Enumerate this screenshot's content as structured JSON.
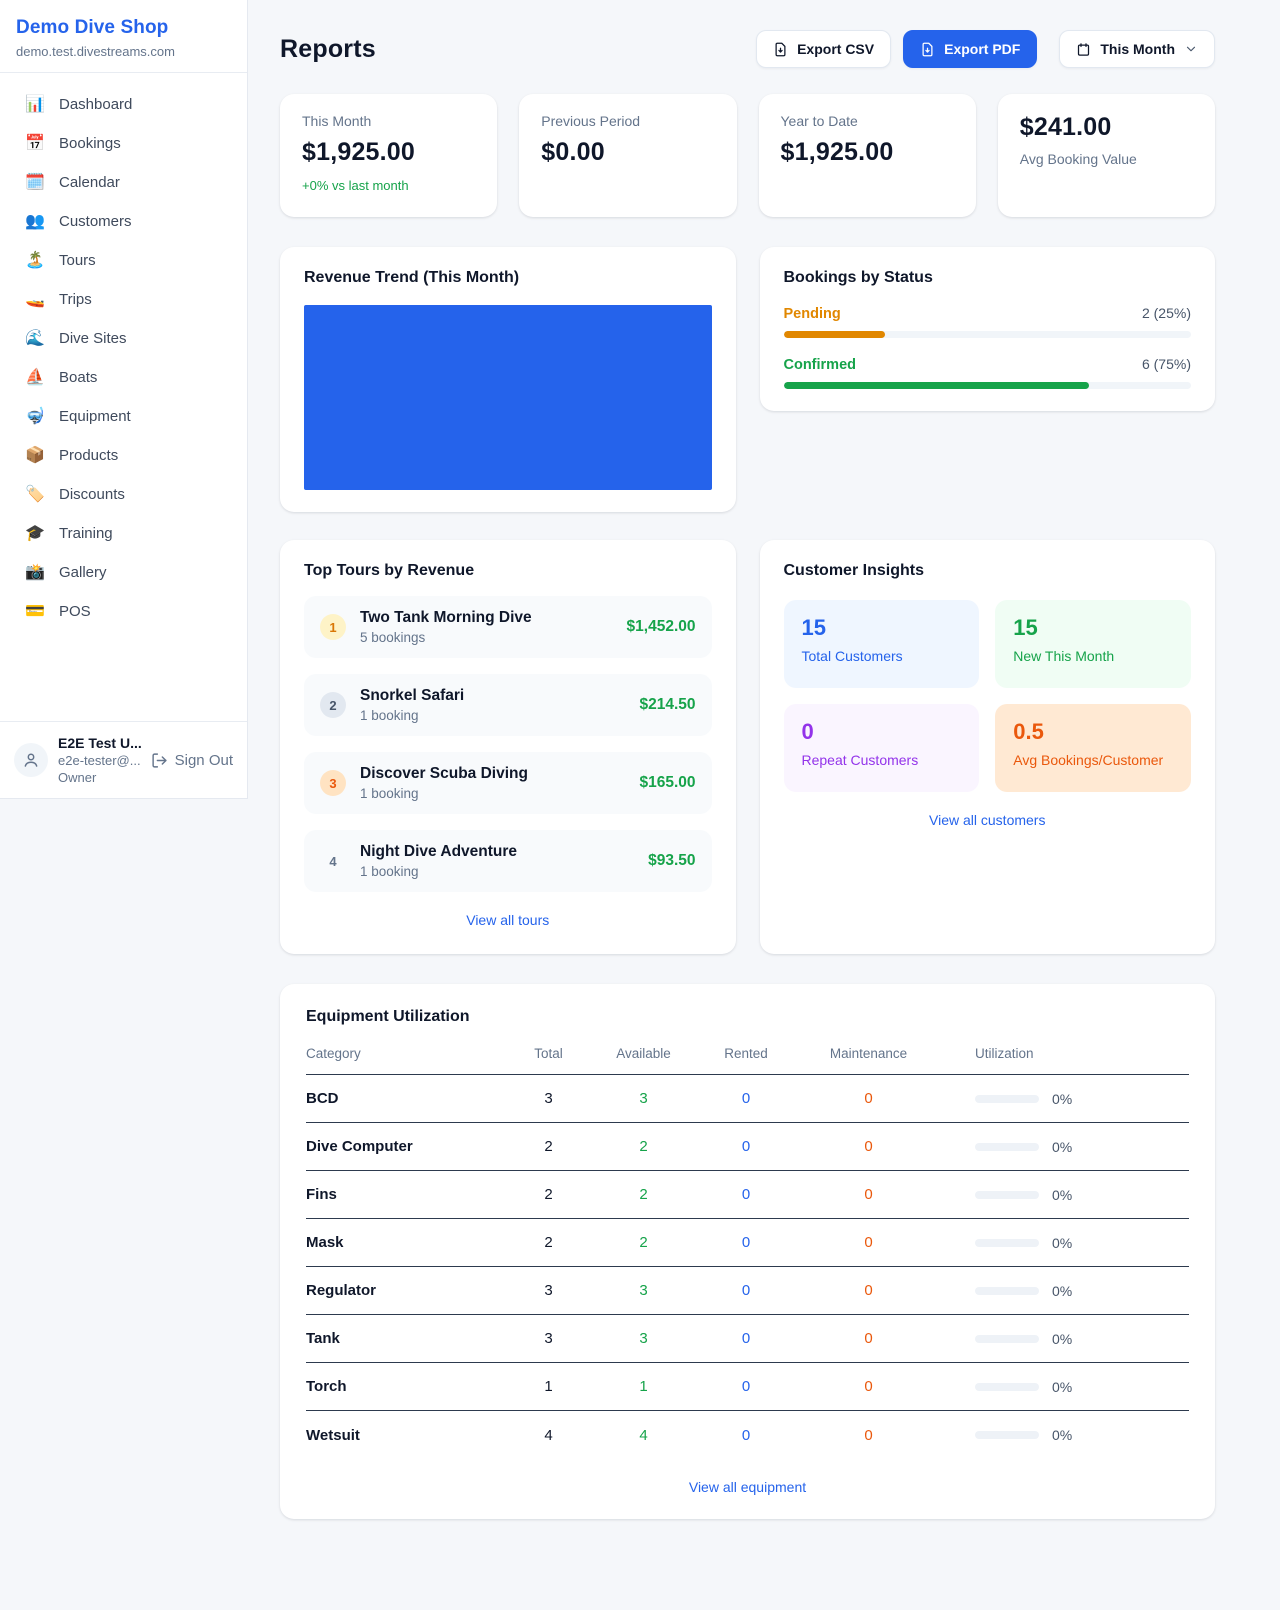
{
  "sidebar": {
    "brand": {
      "name": "Demo Dive Shop",
      "domain": "demo.test.divestreams.com"
    },
    "nav": [
      {
        "label": "Dashboard",
        "icon": "📊"
      },
      {
        "label": "Bookings",
        "icon": "📅"
      },
      {
        "label": "Calendar",
        "icon": "🗓️"
      },
      {
        "label": "Customers",
        "icon": "👥"
      },
      {
        "label": "Tours",
        "icon": "🏝️"
      },
      {
        "label": "Trips",
        "icon": "🚤"
      },
      {
        "label": "Dive Sites",
        "icon": "🌊"
      },
      {
        "label": "Boats",
        "icon": "⛵"
      },
      {
        "label": "Equipment",
        "icon": "🤿"
      },
      {
        "label": "Products",
        "icon": "📦"
      },
      {
        "label": "Discounts",
        "icon": "🏷️"
      },
      {
        "label": "Training",
        "icon": "🎓"
      },
      {
        "label": "Gallery",
        "icon": "📸"
      },
      {
        "label": "POS",
        "icon": "💳"
      }
    ],
    "user": {
      "name": "E2E Test U...",
      "email": "e2e-tester@...",
      "role": "Owner",
      "sign_out_label": "Sign Out"
    }
  },
  "header": {
    "title": "Reports",
    "export_csv_label": "Export CSV",
    "export_pdf_label": "Export PDF",
    "period_label": "This Month"
  },
  "summary_cards": {
    "this_month": {
      "label": "This Month",
      "value": "$1,925.00",
      "delta": "+0% vs last month"
    },
    "previous_period": {
      "label": "Previous Period",
      "value": "$0.00"
    },
    "year_to_date": {
      "label": "Year to Date",
      "value": "$1,925.00"
    },
    "avg_booking": {
      "value": "$241.00",
      "label": "Avg Booking Value"
    }
  },
  "revenue_trend": {
    "title": "Revenue Trend (This Month)"
  },
  "bookings_by_status": {
    "title": "Bookings by Status",
    "statuses": [
      {
        "label": "Pending",
        "value_text": "2 (25%)",
        "count": 2,
        "percent": 25,
        "color": "#e18700"
      },
      {
        "label": "Confirmed",
        "value_text": "6 (75%)",
        "count": 6,
        "percent": 75,
        "color": "#16a34a"
      }
    ]
  },
  "top_tours": {
    "title": "Top Tours by Revenue",
    "items": [
      {
        "rank": "1",
        "name": "Two Tank Morning Dive",
        "bookings": "5 bookings",
        "revenue": "$1,452.00"
      },
      {
        "rank": "2",
        "name": "Snorkel Safari",
        "bookings": "1 booking",
        "revenue": "$214.50"
      },
      {
        "rank": "3",
        "name": "Discover Scuba Diving",
        "bookings": "1 booking",
        "revenue": "$165.00"
      },
      {
        "rank": "4",
        "name": "Night Dive Adventure",
        "bookings": "1 booking",
        "revenue": "$93.50"
      }
    ],
    "view_all_label": "View all tours"
  },
  "customer_insights": {
    "title": "Customer Insights",
    "tiles": [
      {
        "value": "15",
        "label": "Total Customers",
        "theme": "blue"
      },
      {
        "value": "15",
        "label": "New This Month",
        "theme": "green"
      },
      {
        "value": "0",
        "label": "Repeat Customers",
        "theme": "purple"
      },
      {
        "value": "0.5",
        "label": "Avg Bookings/Customer",
        "theme": "orange"
      }
    ],
    "view_all_label": "View all customers"
  },
  "equipment_utilization": {
    "title": "Equipment Utilization",
    "columns": [
      "Category",
      "Total",
      "Available",
      "Rented",
      "Maintenance",
      "Utilization"
    ],
    "rows": [
      {
        "category": "BCD",
        "total": "3",
        "available": "3",
        "rented": "0",
        "maintenance": "0",
        "utilization_label": "0%",
        "utilization_percent": 0
      },
      {
        "category": "Dive Computer",
        "total": "2",
        "available": "2",
        "rented": "0",
        "maintenance": "0",
        "utilization_label": "0%",
        "utilization_percent": 0
      },
      {
        "category": "Fins",
        "total": "2",
        "available": "2",
        "rented": "0",
        "maintenance": "0",
        "utilization_label": "0%",
        "utilization_percent": 0
      },
      {
        "category": "Mask",
        "total": "2",
        "available": "2",
        "rented": "0",
        "maintenance": "0",
        "utilization_label": "0%",
        "utilization_percent": 0
      },
      {
        "category": "Regulator",
        "total": "3",
        "available": "3",
        "rented": "0",
        "maintenance": "0",
        "utilization_label": "0%",
        "utilization_percent": 0
      },
      {
        "category": "Tank",
        "total": "3",
        "available": "3",
        "rented": "0",
        "maintenance": "0",
        "utilization_label": "0%",
        "utilization_percent": 0
      },
      {
        "category": "Torch",
        "total": "1",
        "available": "1",
        "rented": "0",
        "maintenance": "0",
        "utilization_label": "0%",
        "utilization_percent": 0
      },
      {
        "category": "Wetsuit",
        "total": "4",
        "available": "4",
        "rented": "0",
        "maintenance": "0",
        "utilization_label": "0%",
        "utilization_percent": 0
      }
    ],
    "view_all_label": "View all equipment"
  },
  "colors": {
    "accent_blue": "#2563eb",
    "positive_green": "#16a34a",
    "pending_orange": "#e18700",
    "maintenance_orange": "#ea580c",
    "brand_blue": "#2563eb"
  }
}
